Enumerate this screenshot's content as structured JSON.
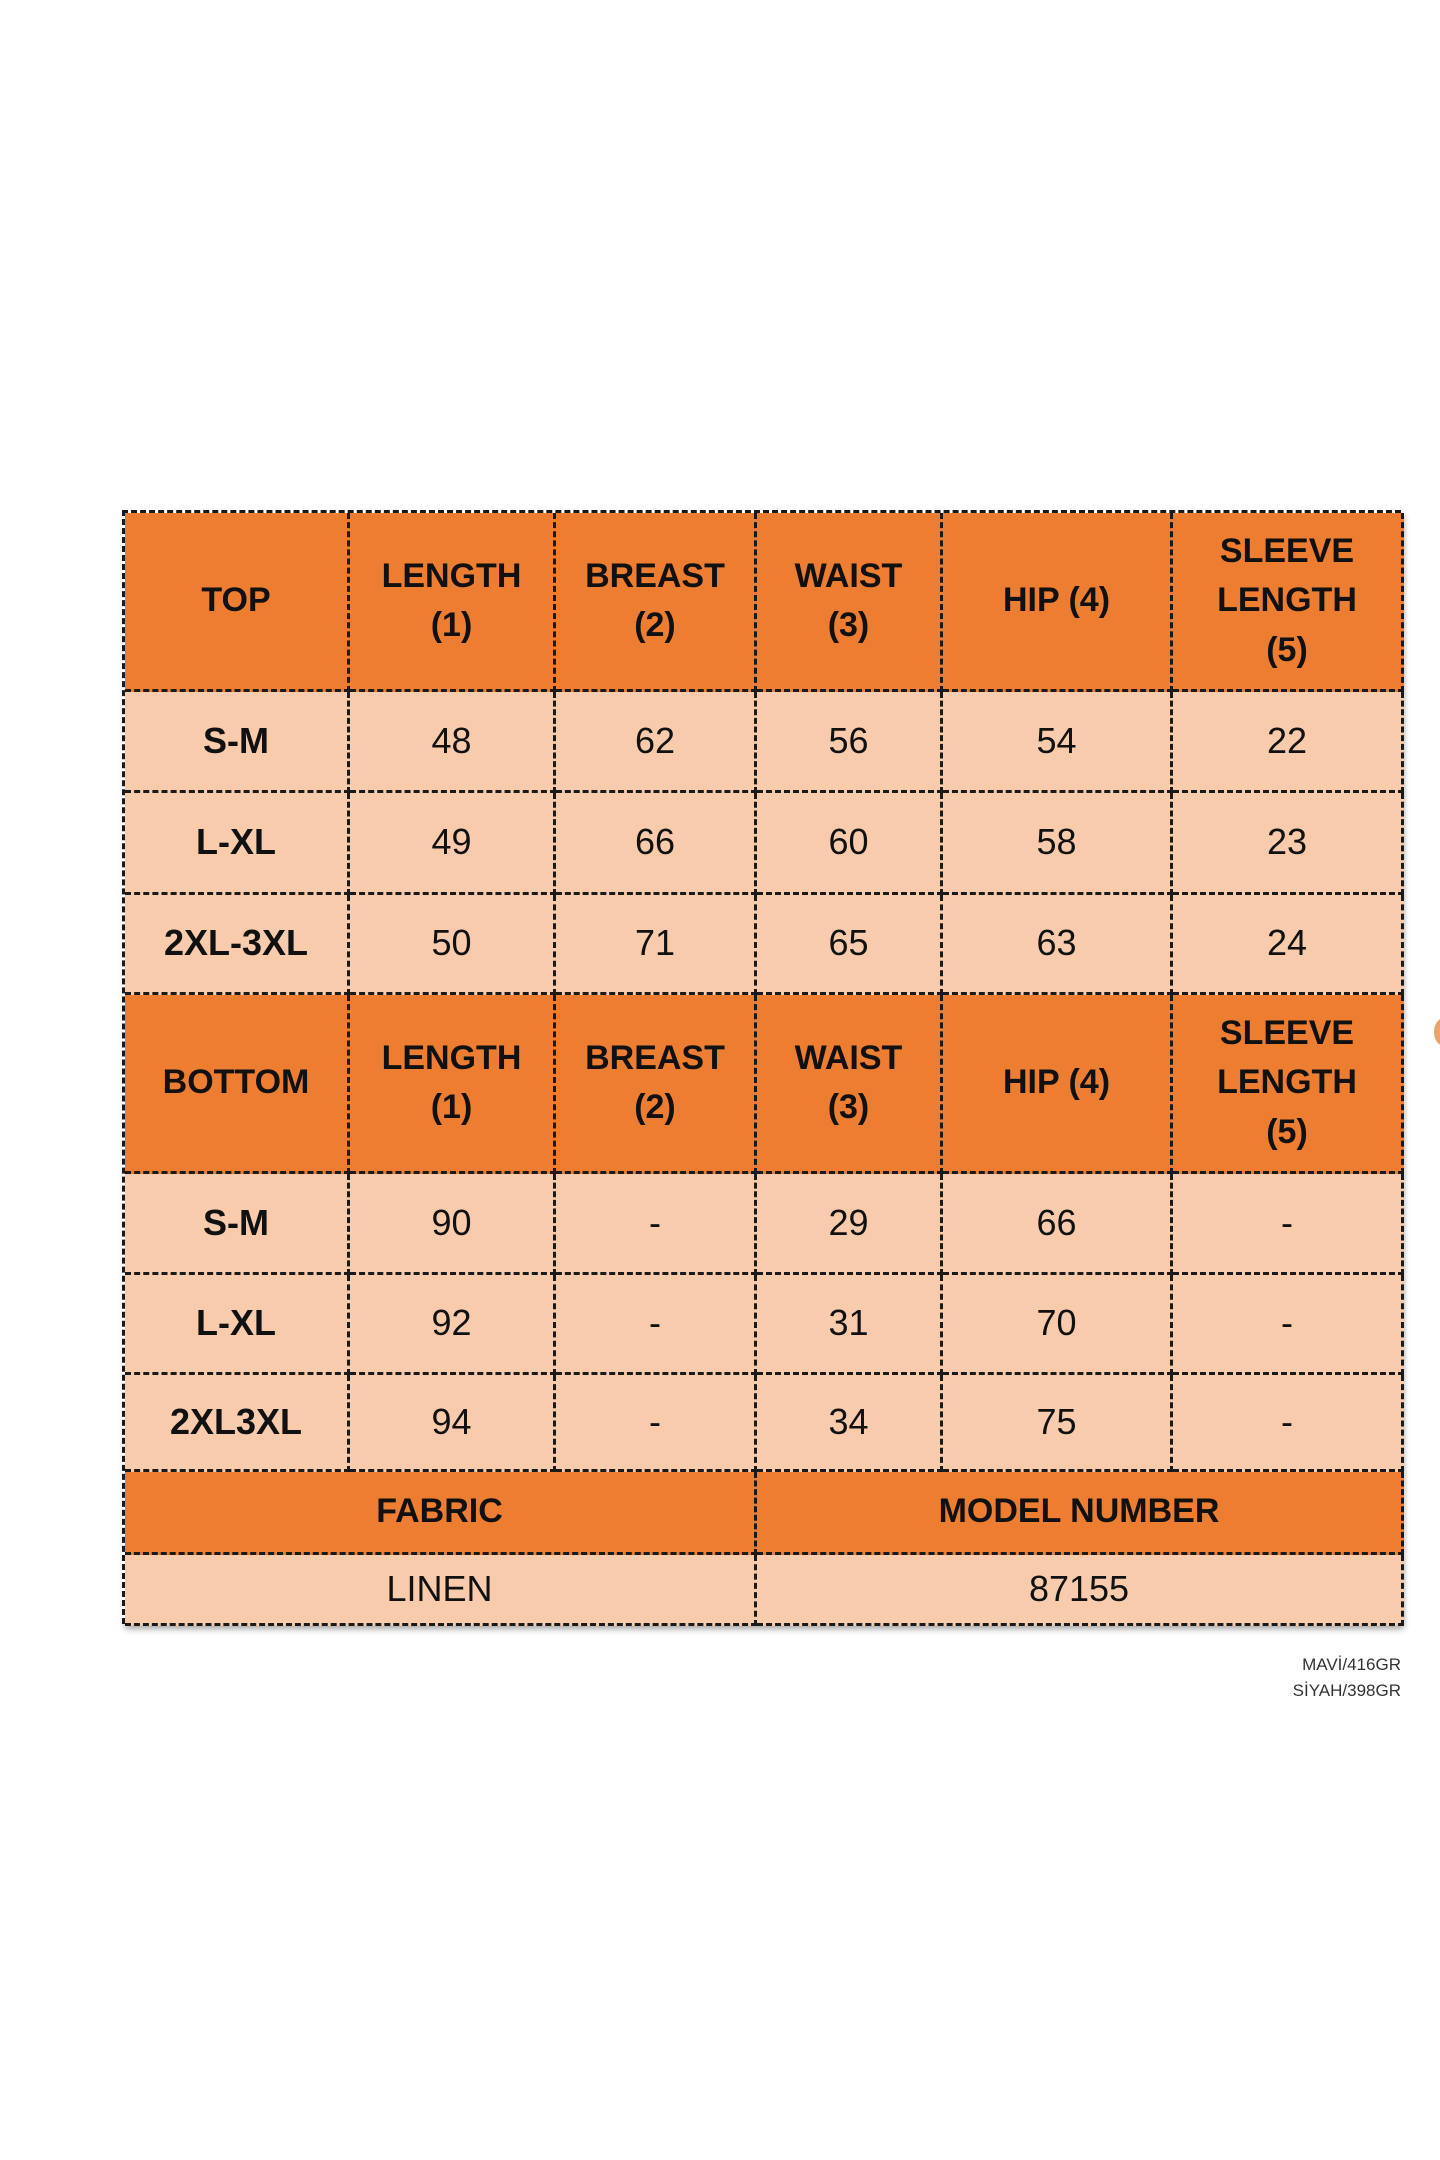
{
  "colors": {
    "header": "#ED7D31",
    "body": "#F8CBAD",
    "border": "#1a1a1a"
  },
  "top": {
    "headers": [
      "TOP",
      "LENGTH\n(1)",
      "BREAST\n(2)",
      "WAIST\n(3)",
      "HIP (4)",
      "SLEEVE\nLENGTH\n(5)"
    ],
    "rows": [
      [
        "S-M",
        "48",
        "62",
        "56",
        "54",
        "22"
      ],
      [
        "L-XL",
        "49",
        "66",
        "60",
        "58",
        "23"
      ],
      [
        "2XL-3XL",
        "50",
        "71",
        "65",
        "63",
        "24"
      ]
    ]
  },
  "bottom": {
    "headers": [
      "BOTTOM",
      "LENGTH\n(1)",
      "BREAST\n(2)",
      "WAIST\n(3)",
      "HIP (4)",
      "SLEEVE\nLENGTH\n(5)"
    ],
    "rows": [
      [
        "S-M",
        "90",
        "-",
        "29",
        "66",
        "-"
      ],
      [
        "L-XL",
        "92",
        "-",
        "31",
        "70",
        "-"
      ],
      [
        "2XL3XL",
        "94",
        "-",
        "34",
        "75",
        "-"
      ]
    ]
  },
  "footer": {
    "fabric_label": "FABRIC",
    "model_label": "MODEL NUMBER",
    "fabric_value": "LINEN",
    "model_value": "87155"
  },
  "notes": [
    "MAVİ/416GR",
    "SİYAH/398GR"
  ]
}
